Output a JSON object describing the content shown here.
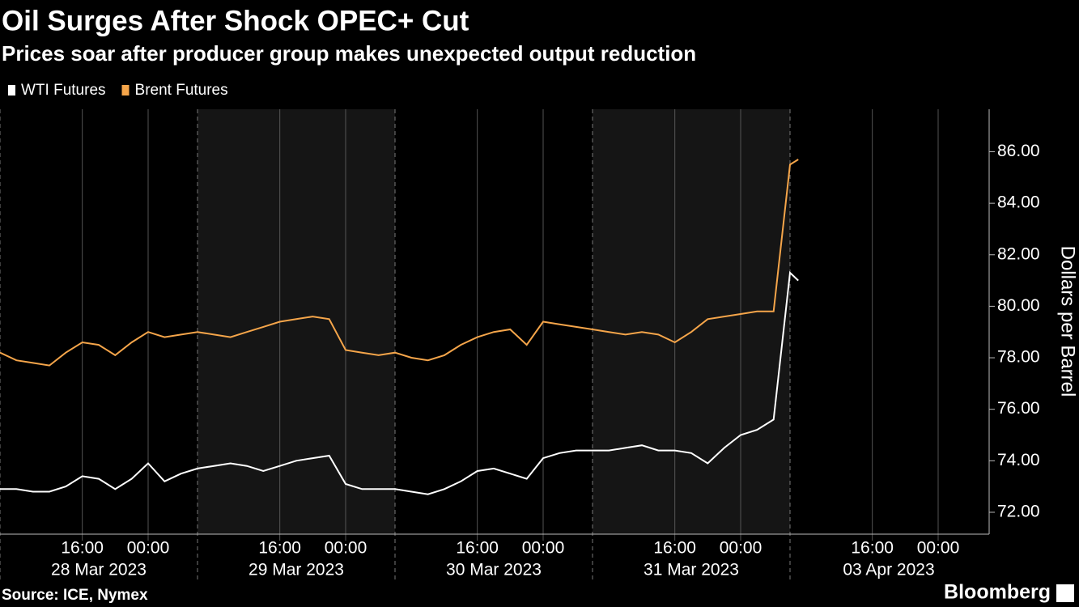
{
  "chart_data": {
    "type": "line",
    "title": "Oil Surges After Shock OPEC+ Cut",
    "subtitle": "Prices soar after producer group makes unexpected output reduction",
    "y_label": "Dollars per Barrel",
    "source": "Source: ICE, Nymex",
    "brand": "Bloomberg",
    "sessions": [
      "28 Mar 2023",
      "29 Mar 2023",
      "30 Mar 2023",
      "31 Mar 2023",
      "03 Apr 2023"
    ],
    "time_ticks": [
      "16:00",
      "00:00"
    ],
    "x": [
      "2023-03-28 06:00",
      "2023-03-28 08:00",
      "2023-03-28 10:00",
      "2023-03-28 12:00",
      "2023-03-28 14:00",
      "2023-03-28 16:00",
      "2023-03-28 18:00",
      "2023-03-28 20:00",
      "2023-03-28 22:00",
      "2023-03-29 00:00",
      "2023-03-29 02:00",
      "2023-03-29 04:00",
      "2023-03-29 06:00",
      "2023-03-29 08:00",
      "2023-03-29 10:00",
      "2023-03-29 12:00",
      "2023-03-29 14:00",
      "2023-03-29 16:00",
      "2023-03-29 18:00",
      "2023-03-29 20:00",
      "2023-03-29 22:00",
      "2023-03-30 00:00",
      "2023-03-30 02:00",
      "2023-03-30 04:00",
      "2023-03-30 06:00",
      "2023-03-30 08:00",
      "2023-03-30 10:00",
      "2023-03-30 12:00",
      "2023-03-30 14:00",
      "2023-03-30 16:00",
      "2023-03-30 18:00",
      "2023-03-30 20:00",
      "2023-03-30 22:00",
      "2023-03-31 00:00",
      "2023-03-31 02:00",
      "2023-03-31 04:00",
      "2023-03-31 06:00",
      "2023-03-31 08:00",
      "2023-03-31 10:00",
      "2023-03-31 12:00",
      "2023-03-31 14:00",
      "2023-03-31 16:00",
      "2023-03-31 18:00",
      "2023-03-31 20:00",
      "2023-03-31 22:00",
      "2023-04-01 00:00",
      "2023-04-01 02:00",
      "2023-04-01 04:00",
      "2023-04-03 06:00",
      "2023-04-03 07:00"
    ],
    "series": [
      {
        "name": "WTI Futures",
        "color": "#ffffff",
        "values": [
          72.9,
          72.9,
          72.8,
          72.8,
          73.0,
          73.4,
          73.3,
          72.9,
          73.3,
          73.9,
          73.2,
          73.5,
          73.7,
          73.8,
          73.9,
          73.8,
          73.6,
          73.8,
          74.0,
          74.1,
          74.2,
          73.1,
          72.9,
          72.9,
          72.9,
          72.8,
          72.7,
          72.9,
          73.2,
          73.6,
          73.7,
          73.5,
          73.3,
          74.1,
          74.3,
          74.4,
          74.4,
          74.4,
          74.5,
          74.6,
          74.4,
          74.4,
          74.3,
          73.9,
          74.5,
          75.0,
          75.2,
          75.6,
          81.3,
          81.0
        ]
      },
      {
        "name": "Brent Futures",
        "color": "#f5a54a",
        "values": [
          78.2,
          77.9,
          77.8,
          77.7,
          78.2,
          78.6,
          78.5,
          78.1,
          78.6,
          79.0,
          78.8,
          78.9,
          79.0,
          78.9,
          78.8,
          79.0,
          79.2,
          79.4,
          79.5,
          79.6,
          79.5,
          78.3,
          78.2,
          78.1,
          78.2,
          78.0,
          77.9,
          78.1,
          78.5,
          78.8,
          79.0,
          79.1,
          78.5,
          79.4,
          79.3,
          79.2,
          79.1,
          79.0,
          78.9,
          79.0,
          78.9,
          78.6,
          79.0,
          79.5,
          79.6,
          79.7,
          79.8,
          79.8,
          85.5,
          85.7
        ]
      }
    ],
    "ylim": [
      71.15,
      87.65
    ],
    "yticks": [
      {
        "value": 72,
        "label": "72.00"
      },
      {
        "value": 74,
        "label": "74.00"
      },
      {
        "value": 76,
        "label": "76.00"
      },
      {
        "value": 78,
        "label": "78.00"
      },
      {
        "value": 80,
        "label": "80.00"
      },
      {
        "value": 82,
        "label": "82.00"
      },
      {
        "value": 84,
        "label": "84.00"
      },
      {
        "value": 86,
        "label": "86.00"
      }
    ]
  }
}
